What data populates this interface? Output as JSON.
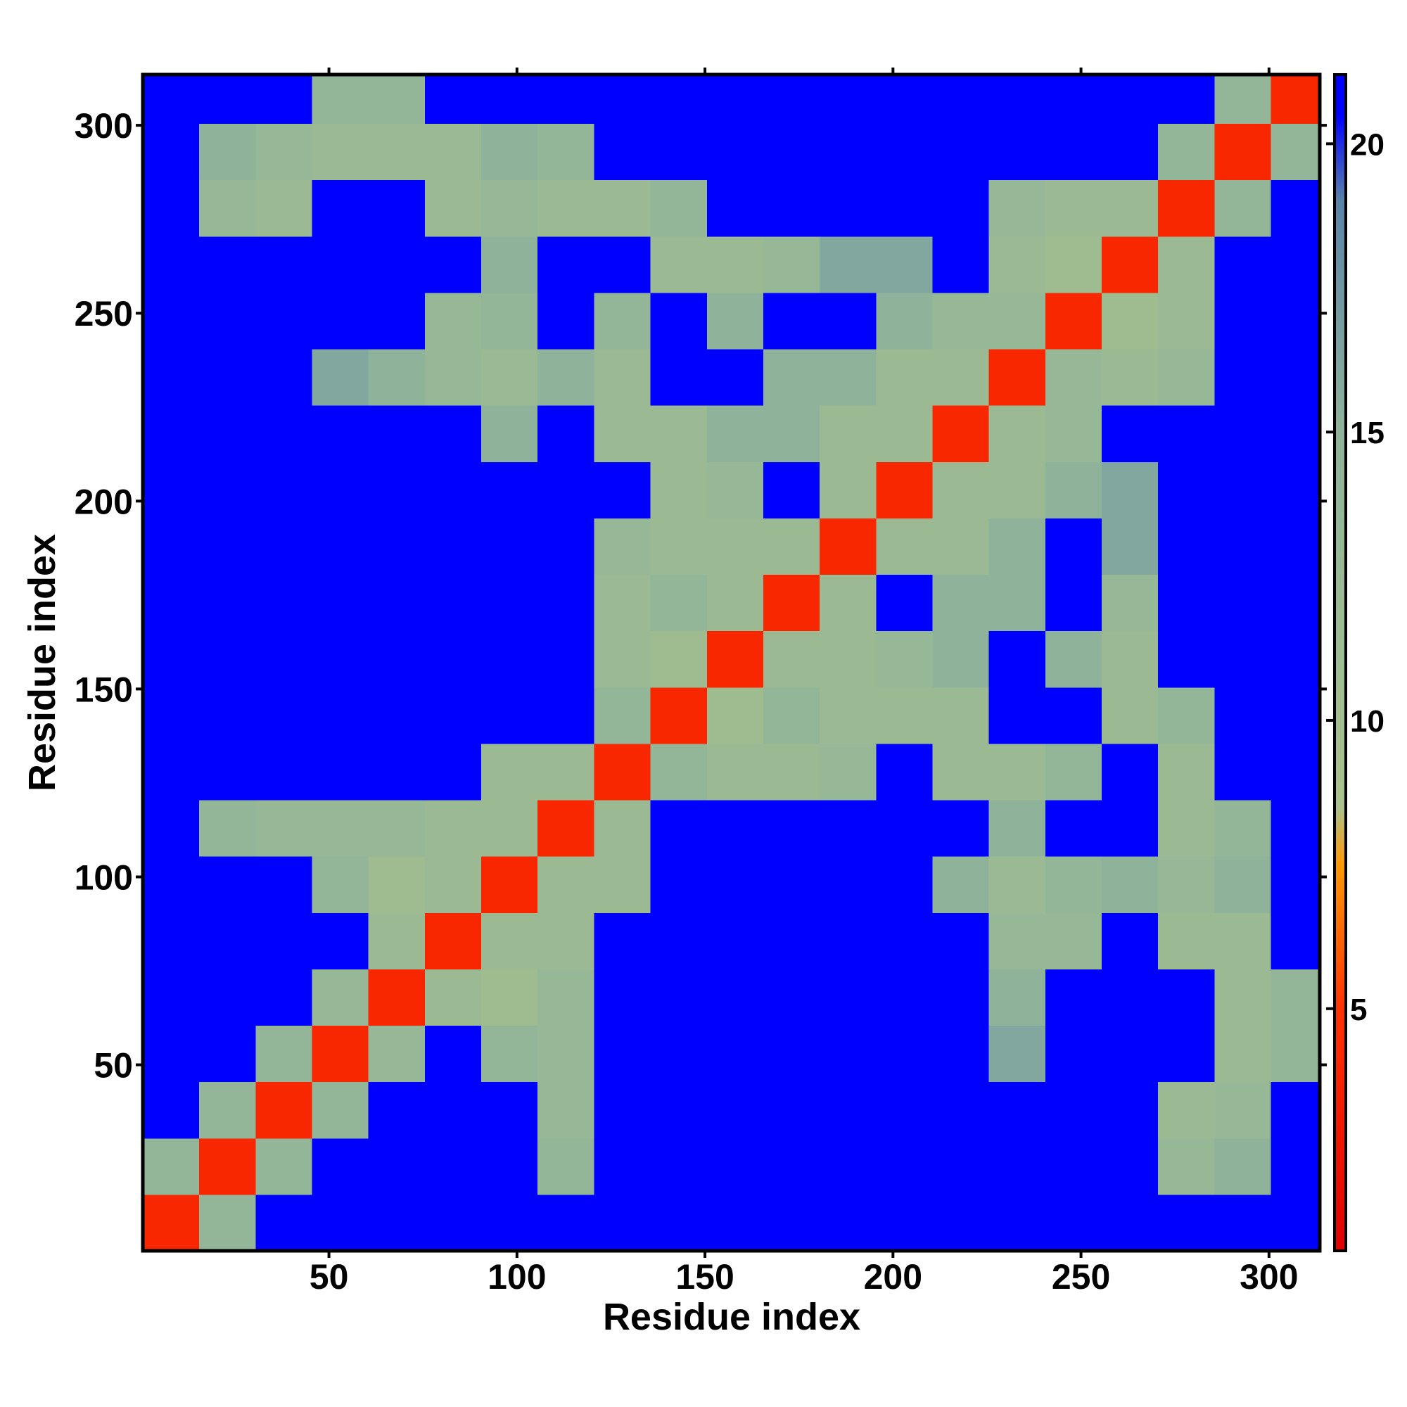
{
  "chart_data": {
    "type": "heatmap",
    "xlabel": "Residue index",
    "ylabel": "Residue index",
    "xlim": [
      0.5,
      313.5
    ],
    "ylim": [
      0.5,
      313.5
    ],
    "xticks": [
      50,
      100,
      150,
      200,
      250,
      300
    ],
    "yticks": [
      50,
      100,
      150,
      200,
      250,
      300
    ],
    "xbins": [
      0.5,
      15.5,
      30.5,
      45.5,
      60.5,
      75.5,
      90.5,
      105.5,
      120.5,
      135.5,
      150.5,
      165.5,
      180.5,
      195.5,
      210.5,
      225.5,
      240.5,
      255.5,
      270.5,
      285.5,
      300.5,
      313.5
    ],
    "ybins": [
      0.5,
      15.5,
      30.5,
      45.5,
      60.5,
      75.5,
      90.5,
      105.5,
      120.5,
      135.5,
      150.5,
      165.5,
      180.5,
      195.5,
      210.5,
      225.5,
      240.5,
      255.5,
      270.5,
      285.5,
      300.5,
      313.5
    ],
    "zlim": [
      0.8,
      21.2
    ],
    "colorbar_ticks": [
      5,
      10,
      15,
      20
    ],
    "colorscale": [
      {
        "value": 0.8,
        "color": "#e00000"
      },
      {
        "value": 5,
        "color": "#ff3300"
      },
      {
        "value": 7.5,
        "color": "#ff9900"
      },
      {
        "value": 8.5,
        "color": "#a9c28c"
      },
      {
        "value": 15,
        "color": "#8fb39a"
      },
      {
        "value": 19,
        "color": "#5a84a8"
      },
      {
        "value": 20.5,
        "color": "#0000ff"
      }
    ],
    "z": [
      [
        4,
        14,
        21,
        21,
        21,
        21,
        21,
        21,
        21,
        21,
        21,
        21,
        21,
        21,
        21,
        21,
        21,
        21,
        21,
        21,
        21
      ],
      [
        14,
        4,
        14,
        21,
        21,
        21,
        21,
        14,
        21,
        21,
        21,
        21,
        21,
        21,
        21,
        21,
        21,
        21,
        13,
        15,
        21
      ],
      [
        21,
        14,
        4,
        14,
        21,
        21,
        21,
        13,
        21,
        21,
        21,
        21,
        21,
        21,
        21,
        21,
        21,
        21,
        12,
        13,
        21
      ],
      [
        21,
        21,
        14,
        4,
        13,
        21,
        14,
        13,
        21,
        21,
        21,
        21,
        21,
        21,
        21,
        16,
        21,
        21,
        21,
        12,
        14
      ],
      [
        21,
        21,
        21,
        13,
        4,
        12,
        11,
        13,
        21,
        21,
        21,
        21,
        21,
        21,
        21,
        15,
        21,
        21,
        21,
        12,
        14
      ],
      [
        21,
        21,
        21,
        21,
        12,
        4,
        12,
        12,
        21,
        21,
        21,
        21,
        21,
        21,
        21,
        13,
        13,
        21,
        12,
        12,
        21
      ],
      [
        21,
        21,
        21,
        14,
        11,
        12,
        4,
        12,
        12,
        21,
        21,
        21,
        21,
        21,
        15,
        12,
        14,
        15,
        13,
        15,
        21
      ],
      [
        21,
        14,
        13,
        13,
        13,
        12,
        12,
        4,
        12,
        21,
        21,
        21,
        21,
        21,
        21,
        15,
        21,
        21,
        12,
        14,
        21
      ],
      [
        21,
        21,
        21,
        21,
        21,
        21,
        12,
        12,
        4,
        14,
        12,
        12,
        13,
        21,
        12,
        12,
        14,
        21,
        12,
        21,
        21
      ],
      [
        21,
        21,
        21,
        21,
        21,
        21,
        21,
        21,
        14,
        4,
        11,
        14,
        12,
        12,
        12,
        21,
        21,
        12,
        14,
        21,
        21
      ],
      [
        21,
        21,
        21,
        21,
        21,
        21,
        21,
        21,
        12,
        11,
        4,
        12,
        12,
        13,
        15,
        21,
        15,
        12,
        21,
        21,
        21
      ],
      [
        21,
        21,
        21,
        21,
        21,
        21,
        21,
        21,
        12,
        14,
        12,
        4,
        12,
        21,
        15,
        15,
        21,
        13,
        21,
        21,
        21
      ],
      [
        21,
        21,
        21,
        21,
        21,
        21,
        21,
        21,
        13,
        12,
        12,
        12,
        4,
        12,
        12,
        15,
        21,
        16,
        21,
        21,
        21
      ],
      [
        21,
        21,
        21,
        21,
        21,
        21,
        21,
        21,
        21,
        12,
        13,
        21,
        12,
        4,
        12,
        12,
        15,
        16,
        21,
        21,
        21
      ],
      [
        21,
        21,
        21,
        21,
        21,
        21,
        15,
        21,
        12,
        12,
        15,
        15,
        12,
        12,
        4,
        12,
        13,
        21,
        21,
        21,
        21
      ],
      [
        21,
        21,
        21,
        16,
        15,
        13,
        12,
        15,
        12,
        21,
        21,
        15,
        15,
        12,
        12,
        4,
        13,
        12,
        13,
        21,
        21
      ],
      [
        21,
        21,
        21,
        21,
        21,
        13,
        14,
        21,
        14,
        21,
        15,
        21,
        21,
        15,
        13,
        13,
        4,
        11,
        12,
        21,
        21
      ],
      [
        21,
        21,
        21,
        21,
        21,
        21,
        15,
        21,
        21,
        12,
        12,
        13,
        16,
        16,
        21,
        12,
        11,
        4,
        12,
        21,
        21
      ],
      [
        21,
        13,
        12,
        21,
        21,
        12,
        13,
        12,
        12,
        14,
        21,
        21,
        21,
        21,
        21,
        13,
        12,
        12,
        4,
        14,
        21
      ],
      [
        21,
        15,
        13,
        12,
        12,
        12,
        15,
        14,
        21,
        21,
        21,
        21,
        21,
        21,
        21,
        21,
        21,
        21,
        14,
        4,
        14
      ],
      [
        21,
        21,
        21,
        14,
        14,
        21,
        21,
        21,
        21,
        21,
        21,
        21,
        21,
        21,
        21,
        21,
        21,
        21,
        21,
        14,
        4
      ]
    ]
  }
}
